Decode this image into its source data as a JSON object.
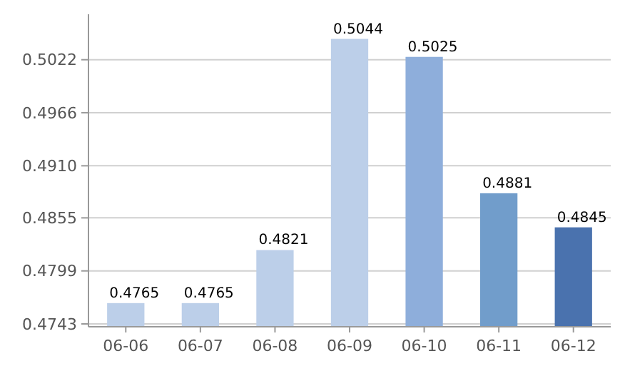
{
  "chart_data": {
    "type": "bar",
    "categories": [
      "06-06",
      "06-07",
      "06-08",
      "06-09",
      "06-10",
      "06-11",
      "06-12"
    ],
    "values": [
      0.4765,
      0.4765,
      0.4821,
      0.5044,
      0.5025,
      0.4881,
      0.4845
    ],
    "colors": [
      "#bccfe9",
      "#bccfe9",
      "#bccfe9",
      "#bccfe9",
      "#8eaedb",
      "#719dcb",
      "#4a72ae"
    ],
    "ylim": [
      0.474,
      0.507
    ],
    "yticks": [
      {
        "value": 0.4743,
        "label": "0.4743"
      },
      {
        "value": 0.4799,
        "label": "0.4799"
      },
      {
        "value": 0.4855,
        "label": "0.4855"
      },
      {
        "value": 0.491,
        "label": "0.4910"
      },
      {
        "value": 0.4966,
        "label": "0.4966"
      },
      {
        "value": 0.5022,
        "label": "0.5022"
      }
    ],
    "grid": "y",
    "data_labels": true
  }
}
